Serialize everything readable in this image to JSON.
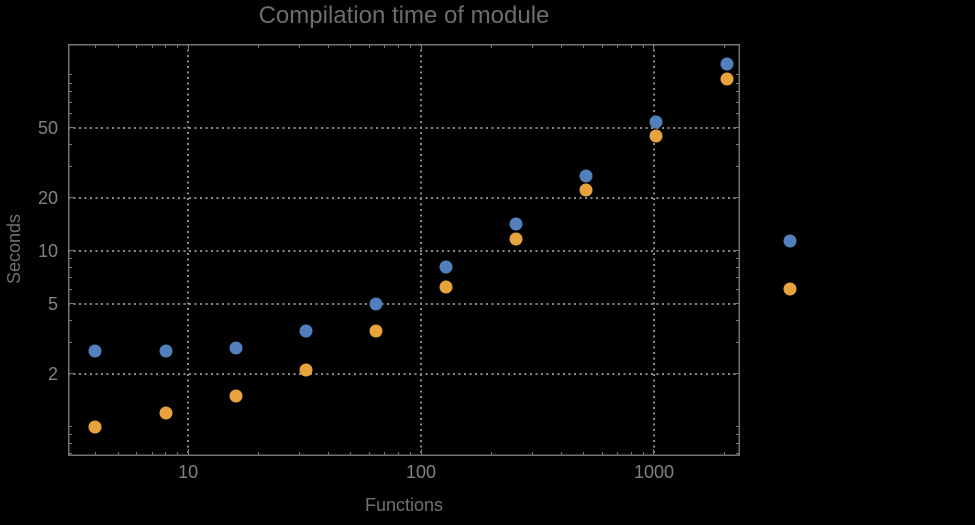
{
  "chart_data": {
    "type": "scatter",
    "title": "Compilation time of module",
    "xlabel": "Functions",
    "ylabel": "Seconds",
    "x_scale": "log",
    "y_scale": "log",
    "xlim": [
      3.05,
      2340
    ],
    "ylim": [
      0.68,
      150
    ],
    "grid": "dotted lines at major ticks, on",
    "x_major_ticks": [
      10,
      100,
      1000
    ],
    "x_major_tick_labels": [
      "10",
      "100",
      "1000"
    ],
    "y_major_ticks": [
      2,
      5,
      10,
      20,
      50
    ],
    "y_major_tick_labels": [
      "2",
      "5",
      "10",
      "20",
      "50"
    ],
    "x": [
      4,
      8,
      16,
      32,
      64,
      128,
      256,
      512,
      1024,
      2048
    ],
    "series": [
      {
        "name": "series-1-blue",
        "color": "#5380bd",
        "values": [
          2.7,
          2.7,
          2.8,
          3.5,
          5.0,
          8.1,
          14.2,
          26.7,
          54,
          116
        ]
      },
      {
        "name": "series-2-orange",
        "color": "#e8a33d",
        "values": [
          1.0,
          1.2,
          1.5,
          2.1,
          3.5,
          6.2,
          11.7,
          22.2,
          45,
          95
        ]
      }
    ],
    "legend": {
      "position": "right-outside",
      "labels_visible": false
    }
  },
  "colors": {
    "background": "#000000",
    "title_text": "#6d6d6d",
    "axis_label_text": "#717171",
    "tick_label_text": "#818181",
    "frame": "#757575",
    "gridline": "#8a8a8a"
  }
}
